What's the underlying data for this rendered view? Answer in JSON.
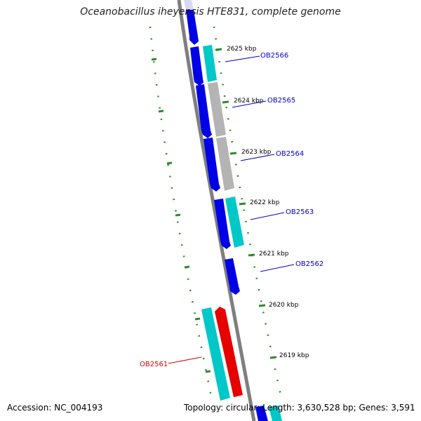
{
  "title": "Oceanobacillus iheyensis HTE831, complete genome",
  "footer": {
    "accession": "Accession: NC_004193",
    "topology": "Topology: circular; Length: 3,630,528 bp; Genes: 3,591"
  },
  "colors": {
    "backbone": "#7f7f7f",
    "tick": "#2e8b2e",
    "forward_gene": "#00c8c8",
    "reverse_gene": "#0000e6",
    "grey_gene": "#b4b4b4",
    "highlight_gene": "#e60000",
    "label_blue": "#0000c8",
    "label_red": "#dc0000"
  },
  "positions_kbp": [
    {
      "label": "2625 kbp"
    },
    {
      "label": "2624 kbp"
    },
    {
      "label": "2623 kbp"
    },
    {
      "label": "2622 kbp"
    },
    {
      "label": "2621 kbp"
    },
    {
      "label": "2620 kbp"
    },
    {
      "label": "2619 kbp"
    }
  ],
  "gene_labels": [
    {
      "text": "OB2566",
      "color": "blue"
    },
    {
      "text": "OB2565",
      "color": "blue"
    },
    {
      "text": "OB2564",
      "color": "blue"
    },
    {
      "text": "OB2563",
      "color": "blue"
    },
    {
      "text": "OB2562",
      "color": "blue"
    },
    {
      "text": "OB2561",
      "color": "red"
    }
  ]
}
